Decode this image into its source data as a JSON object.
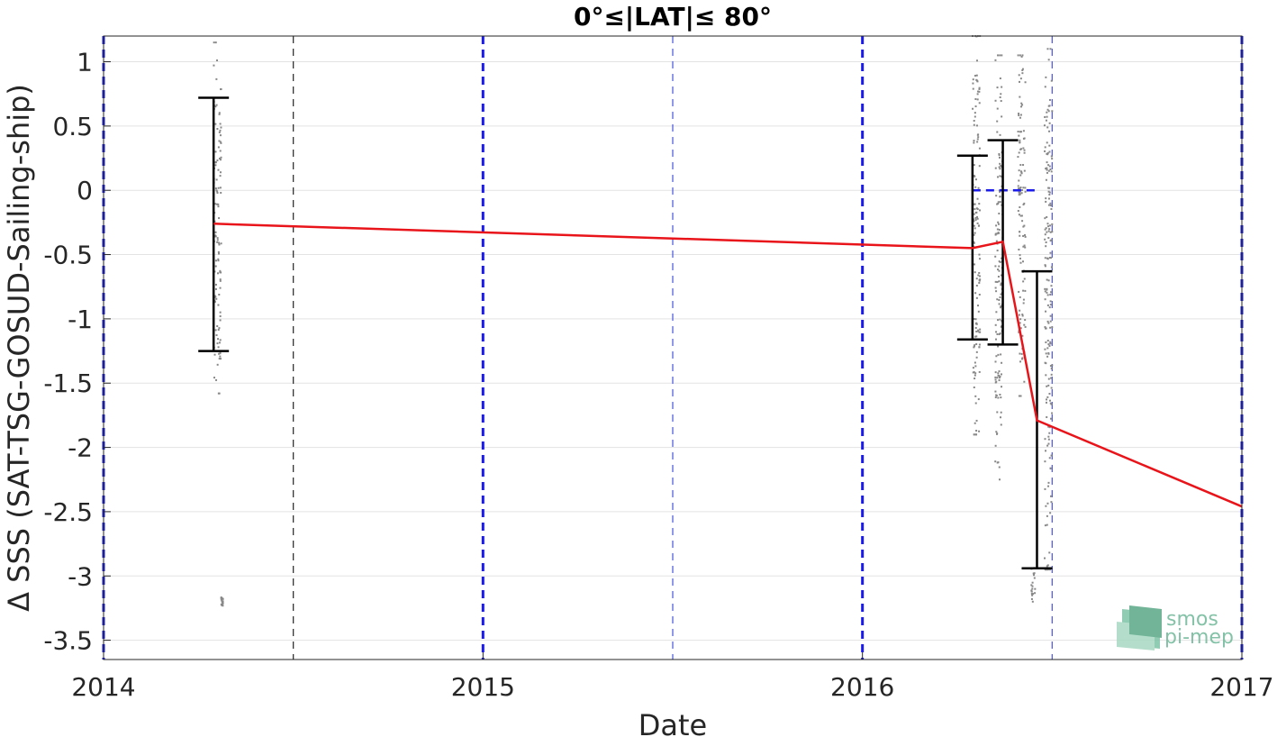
{
  "chart_data": {
    "type": "line",
    "title": "0°≤|LAT|≤ 80°",
    "xlabel": "Date",
    "ylabel": "Δ SSS (SAT-TSG-GOSUD-Sailing-ship)",
    "xlim": [
      2014,
      2017
    ],
    "ylim": [
      -3.65,
      1.2
    ],
    "x_ticks": [
      "2014",
      "2015",
      "2016",
      "2017"
    ],
    "y_ticks": [
      "-3.5",
      "-3",
      "-2.5",
      "-2",
      "-1.5",
      "-1",
      "-0.5",
      "0",
      "0.5",
      "1"
    ],
    "grid": true,
    "mean_line": {
      "color": "#e8141a",
      "x": [
        2014.29,
        2016.29,
        2016.37,
        2016.46,
        2017.0
      ],
      "y": [
        -0.26,
        -0.45,
        -0.4,
        -1.79,
        -2.46
      ]
    },
    "error_bars": {
      "color": "#000000",
      "items": [
        {
          "x": 2014.29,
          "low": -1.25,
          "high": 0.72
        },
        {
          "x": 2016.29,
          "low": -1.16,
          "high": 0.27
        },
        {
          "x": 2016.37,
          "low": -1.2,
          "high": 0.39
        },
        {
          "x": 2016.46,
          "low": -2.94,
          "high": -0.63
        }
      ]
    },
    "zero_reference": {
      "color": "#1a1aee",
      "x": [
        2016.29,
        2016.46
      ],
      "y": 0
    },
    "year_lines": {
      "color": "#1a1aee",
      "x": [
        2014.0,
        2015.0,
        2016.0,
        2017.0
      ]
    },
    "half_year_lines": {
      "color": "#5560e0",
      "x": [
        2014.5,
        2015.5,
        2016.5
      ]
    },
    "scatter_clusters": {
      "color": "#888888",
      "clusters": [
        {
          "x": [
            2014.29,
            2014.31
          ],
          "y": [
            -1.58,
            1.15
          ]
        },
        {
          "x": [
            2014.31,
            2014.315
          ],
          "y": [
            -3.25,
            -3.15
          ]
        },
        {
          "x": [
            2016.29,
            2016.31
          ],
          "y": [
            -1.9,
            1.2
          ]
        },
        {
          "x": [
            2016.35,
            2016.37
          ],
          "y": [
            -2.25,
            1.05
          ]
        },
        {
          "x": [
            2016.41,
            2016.43
          ],
          "y": [
            -1.6,
            1.05
          ]
        },
        {
          "x": [
            2016.445,
            2016.455
          ],
          "y": [
            -3.2,
            -2.9
          ]
        },
        {
          "x": [
            2016.48,
            2016.5
          ],
          "y": [
            -2.95,
            1.1
          ]
        }
      ]
    }
  },
  "logo": {
    "line1": "smos",
    "line2": "pi-mep"
  }
}
